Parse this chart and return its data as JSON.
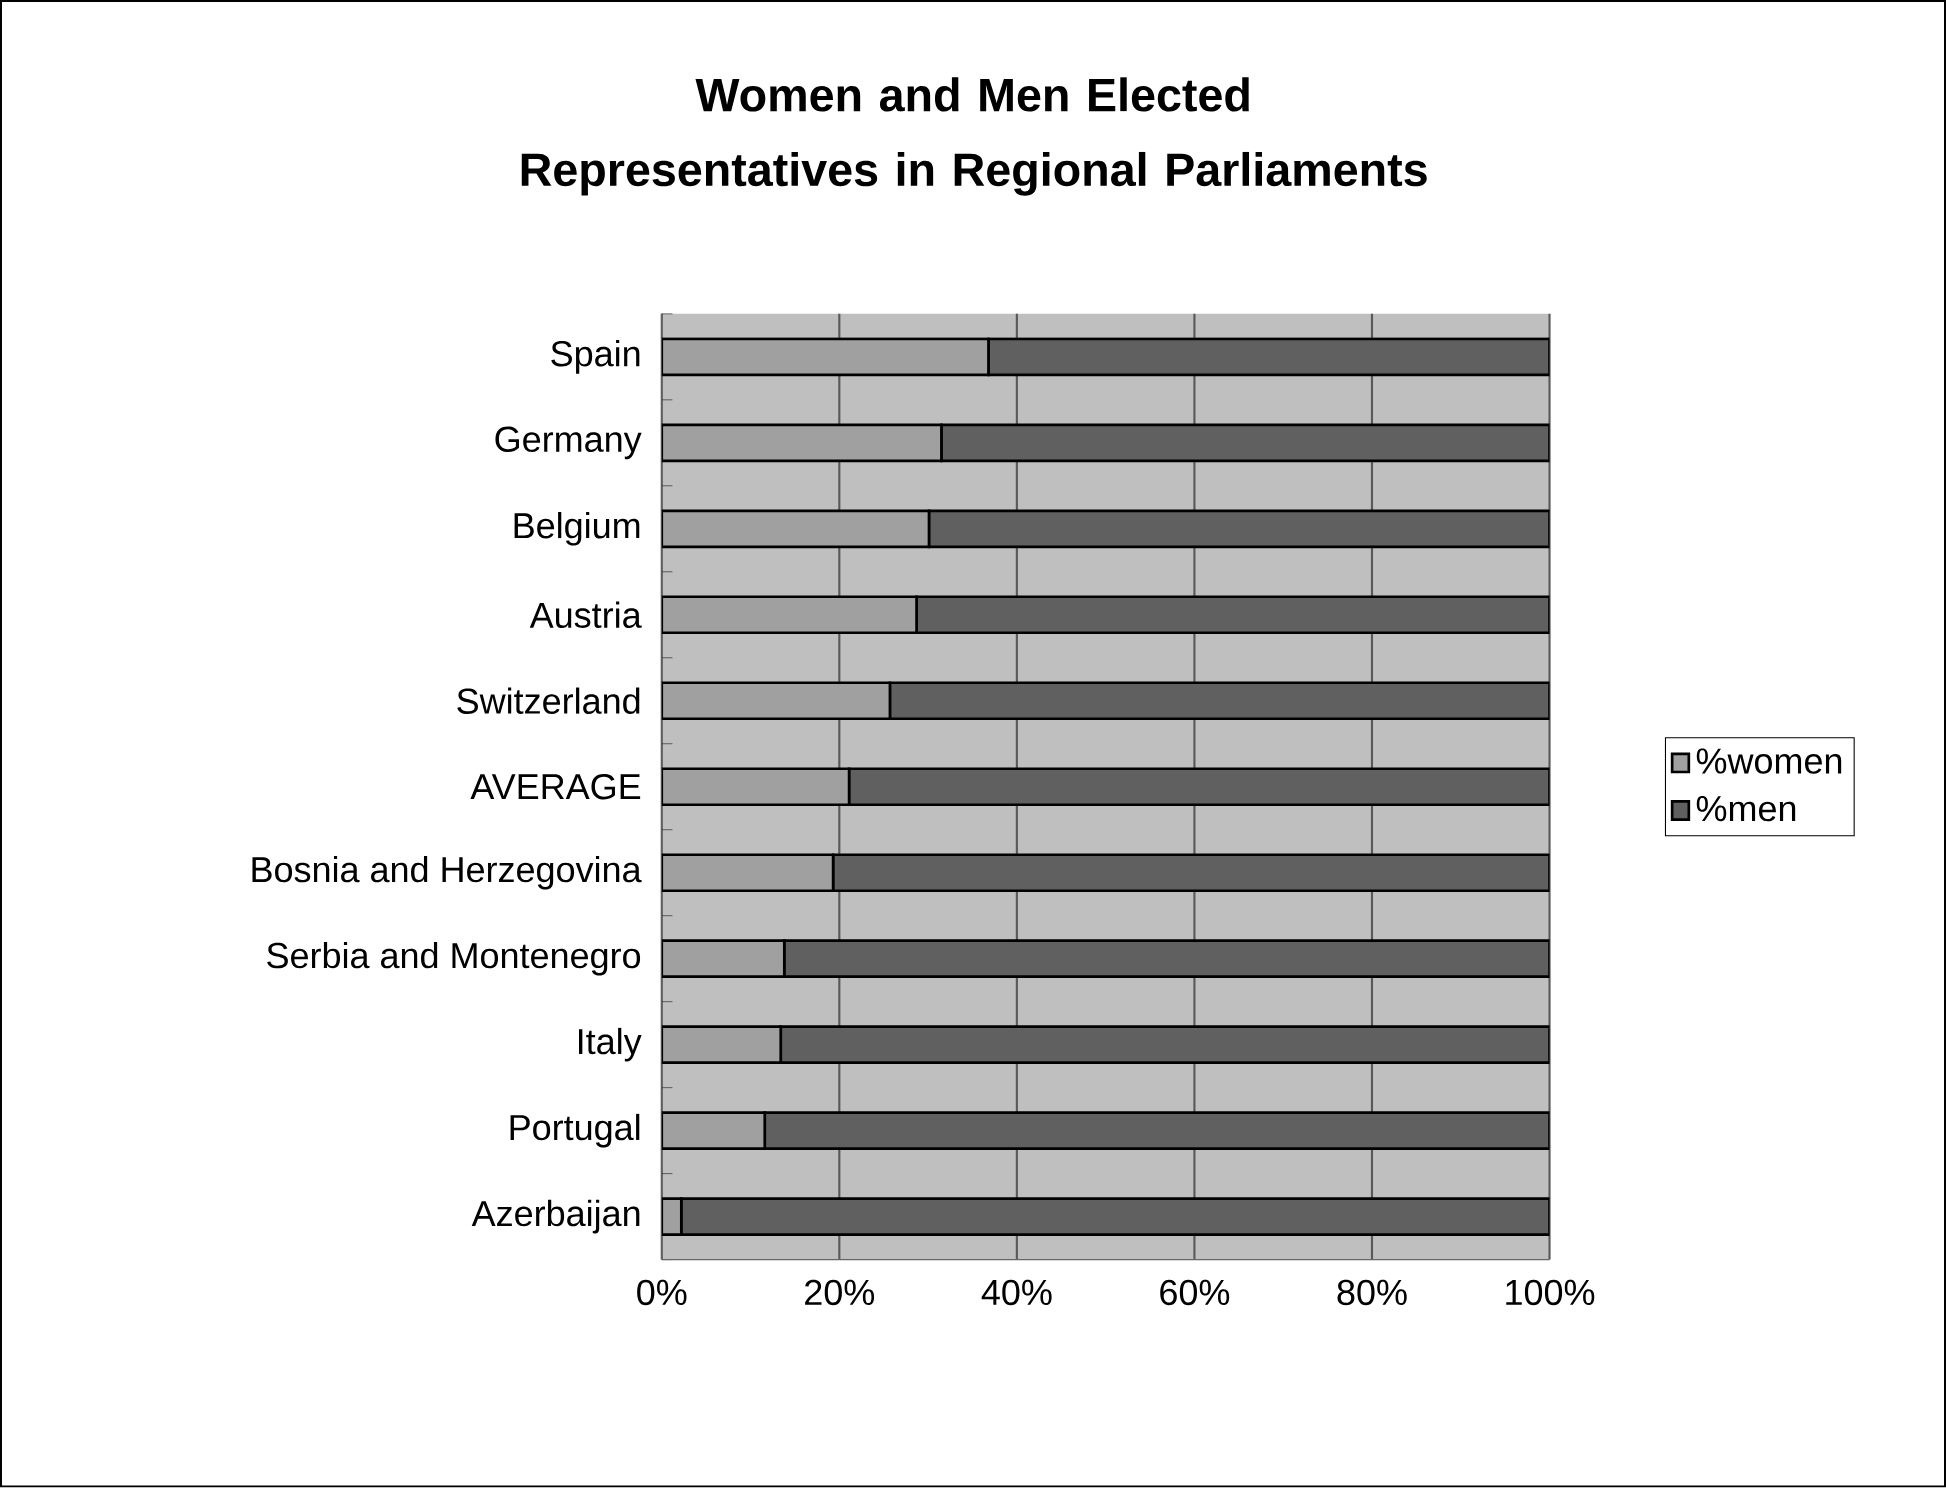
{
  "chart_data": {
    "type": "bar",
    "title": "Women and Men Elected Representatives in Regional Parliaments",
    "orientation": "horizontal",
    "stacked": true,
    "categories": [
      "Spain",
      "Germany",
      "Belgium",
      "Austria",
      "Switzerland",
      "AVERAGE",
      "Bosnia and Herzegovina",
      "Serbia and Montenegro",
      "Italy",
      "Portugal",
      "Azerbaijan"
    ],
    "series": [
      {
        "name": "%women",
        "color": "#a0a0a0",
        "values": [
          36.8,
          31.5,
          30.1,
          28.7,
          25.7,
          21.1,
          19.3,
          13.8,
          13.4,
          11.6,
          2.2
        ]
      },
      {
        "name": "%men",
        "color": "#606060",
        "values": [
          63.2,
          68.5,
          69.9,
          71.3,
          74.3,
          78.9,
          80.7,
          86.2,
          86.6,
          88.4,
          97.8
        ]
      }
    ],
    "xlim": [
      0,
      100
    ],
    "xticks": [
      {
        "value": 0,
        "label": "0%"
      },
      {
        "value": 20,
        "label": "20%"
      },
      {
        "value": 40,
        "label": "40%"
      },
      {
        "value": 60,
        "label": "60%"
      },
      {
        "value": 80,
        "label": "80%"
      },
      {
        "value": 100,
        "label": "100%"
      }
    ],
    "grid": "x",
    "legend": "right"
  }
}
